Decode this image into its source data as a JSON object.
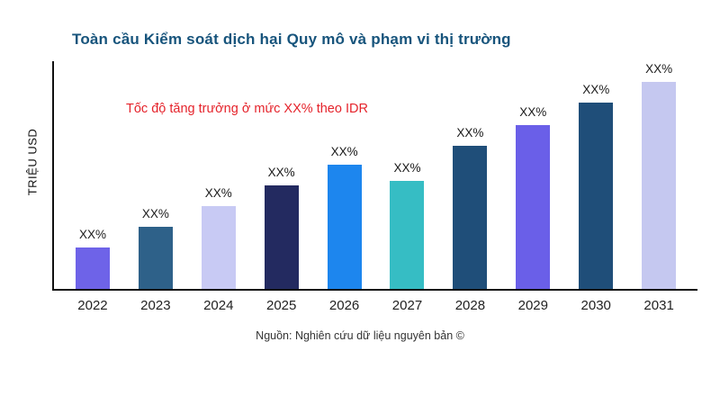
{
  "header": {
    "title": "Toàn cầu Kiểm soát dịch hại Quy mô và phạm vi thị trường",
    "title_color": "#17547c"
  },
  "chart_data": {
    "type": "bar",
    "title": "Toàn cầu Kiểm soát dịch hại Quy mô và phạm vi thị trường",
    "xlabel": "",
    "ylabel": "TRIỆU USD",
    "annotation": "Tốc độ tăng trưởng ở mức XX% theo IDR",
    "annotation_color": "#e5232b",
    "categories": [
      "2022",
      "2023",
      "2024",
      "2025",
      "2026",
      "2027",
      "2028",
      "2029",
      "2030",
      "2031"
    ],
    "values": [
      20,
      30,
      40,
      50,
      60,
      52,
      69,
      79,
      90,
      100
    ],
    "bar_labels": [
      "XX%",
      "XX%",
      "XX%",
      "XX%",
      "XX%",
      "XX%",
      "XX%",
      "XX%",
      "XX%",
      "XX%"
    ],
    "bar_colors": [
      "#6e63e8",
      "#2e6189",
      "#c8caf4",
      "#232a60",
      "#1d86ee",
      "#36bdc4",
      "#1f4e79",
      "#6a5fe8",
      "#1f4e79",
      "#c5c8f0"
    ],
    "ylim": [
      0,
      110
    ],
    "grid": false,
    "legend": "none",
    "axis_color": "#111111"
  },
  "footer": {
    "source": "Nguồn: Nghiên cứu dữ liệu nguyên bản ©"
  }
}
